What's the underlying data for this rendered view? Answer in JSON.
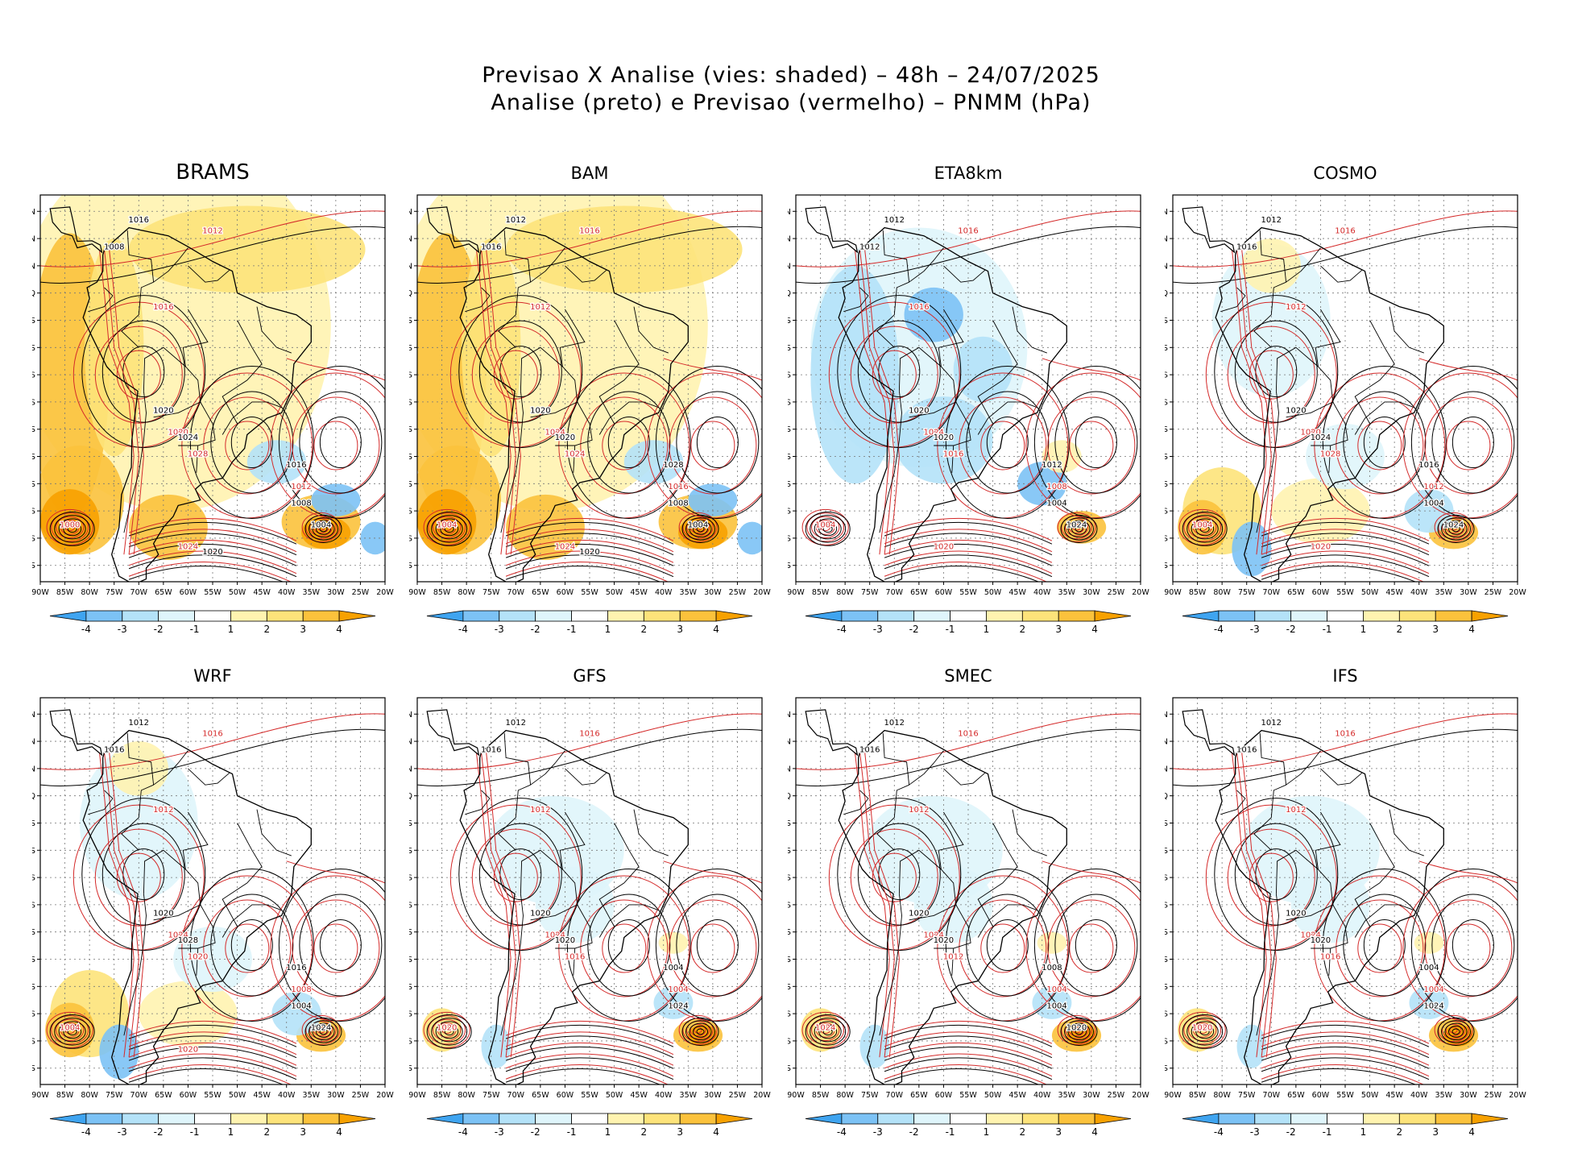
{
  "header": {
    "title_line1": "Previsao X Analise (vies: shaded) – 48h – 24/07/2025",
    "title_line2": "Analise (preto) e Previsao (vermelho) – PNMM (hPa)"
  },
  "colors": {
    "analysis_contour": "#000000",
    "forecast_contour": "#d42a2a",
    "bias_neg4": "#3fa4f0",
    "bias_neg3": "#7cc2f5",
    "bias_neg2": "#b4e2f8",
    "bias_neg1": "#dff5fb",
    "bias_zero": "#ffffff",
    "bias_pos1": "#fff3b0",
    "bias_pos2": "#fde37a",
    "bias_pos3": "#fbc23c",
    "bias_pos4": "#f7a100"
  },
  "chart_data": {
    "type": "heatmap",
    "variable": "PNMM (hPa)",
    "lead_time": "48h",
    "valid_date": "24/07/2025",
    "x_ticks": [
      "90W",
      "85W",
      "80W",
      "75W",
      "70W",
      "65W",
      "60W",
      "55W",
      "50W",
      "45W",
      "40W",
      "35W",
      "30W",
      "25W",
      "20W"
    ],
    "y_ticks": [
      "15N",
      "10N",
      "5N",
      "EQ",
      "5S",
      "10S",
      "15S",
      "20S",
      "25S",
      "30S",
      "35S",
      "40S",
      "45S",
      "50S"
    ],
    "colorbar_ticks": [
      "-4",
      "-3",
      "-2",
      "-1",
      "1",
      "2",
      "3",
      "4"
    ],
    "panels": [
      {
        "model": "BRAMS",
        "bias": "warm",
        "contour_labels": [
          "1016",
          "1012",
          "1008",
          "1016",
          "1020",
          "1020",
          "1024",
          "1028",
          "1016",
          "1012",
          "1008",
          "1000",
          "1004",
          "1024",
          "1020"
        ]
      },
      {
        "model": "BAM",
        "bias": "warm",
        "contour_labels": [
          "1012",
          "1016",
          "1016",
          "1012",
          "1020",
          "1024",
          "1020",
          "1024",
          "1028",
          "1016",
          "1008",
          "1004",
          "1004",
          "1024",
          "1020"
        ]
      },
      {
        "model": "ETA8km",
        "bias": "cold",
        "contour_labels": [
          "1012",
          "1016",
          "1012",
          "1016",
          "1020",
          "1024",
          "1020",
          "1016",
          "1012",
          "1008",
          "1004",
          "1004",
          "1024",
          "1020"
        ]
      },
      {
        "model": "COSMO",
        "bias": "mixed",
        "contour_labels": [
          "1012",
          "1016",
          "1016",
          "1012",
          "1020",
          "1020",
          "1024",
          "1028",
          "1016",
          "1012",
          "1004",
          "1004",
          "1024",
          "1020"
        ]
      },
      {
        "model": "WRF",
        "bias": "mixed",
        "contour_labels": [
          "1012",
          "1016",
          "1016",
          "1012",
          "1020",
          "1024",
          "1028",
          "1020",
          "1016",
          "1008",
          "1004",
          "1004",
          "1024",
          "1020"
        ]
      },
      {
        "model": "GFS",
        "bias": "light",
        "contour_labels": [
          "1012",
          "1016",
          "1016",
          "1012",
          "1020",
          "1024",
          "1020",
          "1016",
          "1004",
          "1004",
          "1024",
          "1020"
        ]
      },
      {
        "model": "SMEC",
        "bias": "light",
        "contour_labels": [
          "1012",
          "1016",
          "1016",
          "1012",
          "1020",
          "1024",
          "1020",
          "1012",
          "1008",
          "1004",
          "1004",
          "1024",
          "1020"
        ]
      },
      {
        "model": "IFS",
        "bias": "light",
        "contour_labels": [
          "1012",
          "1016",
          "1016",
          "1012",
          "1020",
          "1024",
          "1020",
          "1016",
          "1004",
          "1004",
          "1024",
          "1020"
        ]
      }
    ]
  }
}
